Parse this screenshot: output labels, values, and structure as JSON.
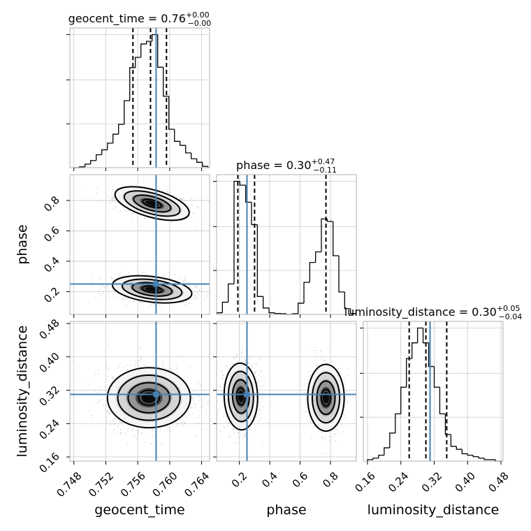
{
  "chart_data": {
    "type": "corner",
    "parameters": [
      {
        "name": "geocent_time",
        "range": [
          0.7475,
          0.765
        ],
        "ticks": [
          "0.748",
          "0.752",
          "0.756",
          "0.760",
          "0.764"
        ],
        "tick_values": [
          0.748,
          0.752,
          0.756,
          0.76,
          0.764
        ],
        "truth": 0.7583,
        "quantiles": [
          0.7554,
          0.7576,
          0.7596
        ],
        "title": {
          "prefix": "geocent_time = 0.76",
          "plus": "+0.00",
          "minus": "−0.00"
        },
        "hist": {
          "bin_edges": [
            0.748,
            0.7487,
            0.7494,
            0.7501,
            0.7508,
            0.7515,
            0.7522,
            0.7529,
            0.7536,
            0.7543,
            0.755,
            0.7557,
            0.7564,
            0.7571,
            0.7578,
            0.7585,
            0.7592,
            0.7599,
            0.7606,
            0.7613,
            0.762,
            0.7627,
            0.7634,
            0.7641,
            0.7648
          ],
          "counts": [
            0,
            2,
            8,
            16,
            29,
            40,
            55,
            75,
            97,
            150,
            224,
            247,
            277,
            283,
            298,
            225,
            160,
            86,
            59,
            50,
            33,
            20,
            12,
            3
          ]
        }
      },
      {
        "name": "phase",
        "range": [
          0.05,
          0.97
        ],
        "ticks": [
          "0.2",
          "0.4",
          "0.6",
          "0.8"
        ],
        "tick_values": [
          0.2,
          0.4,
          0.6,
          0.8
        ],
        "truth": 0.25,
        "quantiles": [
          0.19,
          0.3,
          0.77
        ],
        "title": {
          "prefix": "phase = 0.30",
          "plus": "+0.47",
          "minus": "−0.11"
        },
        "hist": {
          "bin_edges": [
            0.05,
            0.0883,
            0.1267,
            0.165,
            0.2033,
            0.2417,
            0.28,
            0.3183,
            0.3567,
            0.395,
            0.4333,
            0.4717,
            0.51,
            0.5483,
            0.5867,
            0.625,
            0.6633,
            0.7017,
            0.74,
            0.7783,
            0.8167,
            0.855,
            0.8933,
            0.9317,
            0.97
          ],
          "counts": [
            5,
            38,
            95,
            415,
            403,
            350,
            280,
            56,
            20,
            5,
            3,
            2,
            0,
            2,
            35,
            100,
            162,
            195,
            298,
            290,
            183,
            70,
            18,
            3
          ]
        }
      },
      {
        "name": "luminosity_distance",
        "range": [
          0.15,
          0.485
        ],
        "ticks": [
          "0.16",
          "0.24",
          "0.32",
          "0.40",
          "0.48"
        ],
        "tick_values": [
          0.16,
          0.24,
          0.32,
          0.4,
          0.48
        ],
        "truth": 0.31,
        "quantiles": [
          0.26,
          0.3,
          0.35
        ],
        "title": {
          "prefix": "luminosity_distance = 0.30",
          "plus": "+0.05",
          "minus": "−0.04"
        },
        "hist": {
          "bin_edges": [
            0.16,
            0.1733,
            0.1867,
            0.2,
            0.2133,
            0.2267,
            0.24,
            0.2533,
            0.2667,
            0.28,
            0.2933,
            0.3067,
            0.32,
            0.3333,
            0.3467,
            0.36,
            0.3733,
            0.3867,
            0.4,
            0.4133,
            0.4267,
            0.44,
            0.4533,
            0.4667,
            0.48
          ],
          "counts": [
            3,
            6,
            12,
            27,
            57,
            96,
            150,
            208,
            240,
            270,
            240,
            192,
            150,
            96,
            54,
            30,
            24,
            15,
            12,
            9,
            6,
            3,
            3,
            0
          ]
        }
      }
    ],
    "pairs": [
      {
        "x": 0,
        "y": 1,
        "modes": [
          {
            "mx": 0.7578,
            "my": 0.78,
            "sx": 0.0024,
            "sy": 0.045,
            "rho": -0.45,
            "w": 0.42
          },
          {
            "mx": 0.7578,
            "my": 0.215,
            "sx": 0.0025,
            "sy": 0.042,
            "rho": -0.2,
            "w": 0.58
          }
        ]
      },
      {
        "x": 0,
        "y": 2,
        "modes": [
          {
            "mx": 0.7574,
            "my": 0.302,
            "sx": 0.0026,
            "sy": 0.036,
            "rho": 0.0,
            "w": 1.0
          }
        ]
      },
      {
        "x": 1,
        "y": 2,
        "modes": [
          {
            "mx": 0.21,
            "my": 0.305,
            "sx": 0.055,
            "sy": 0.04,
            "rho": 0.05,
            "w": 0.58
          },
          {
            "mx": 0.77,
            "my": 0.302,
            "sx": 0.06,
            "sy": 0.04,
            "rho": 0.0,
            "w": 0.42
          }
        ]
      }
    ]
  }
}
